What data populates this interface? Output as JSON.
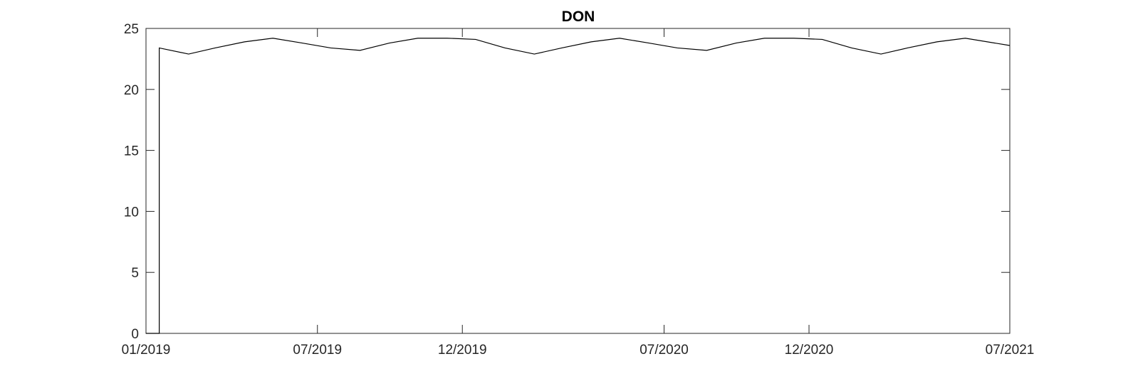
{
  "chart_data": {
    "type": "line",
    "title": "DON",
    "xlabel": "",
    "ylabel": "",
    "x_axis": {
      "type": "date",
      "range": [
        "2019-01-01",
        "2021-07-01"
      ],
      "tick_values": [
        "2019-01-01",
        "2019-07-01",
        "2019-12-01",
        "2020-07-01",
        "2020-12-01",
        "2021-07-01"
      ],
      "tick_labels": [
        "01/2019",
        "07/2019",
        "12/2019",
        "07/2020",
        "12/2020",
        "07/2021"
      ]
    },
    "y_axis": {
      "range": [
        0,
        25
      ],
      "tick_values": [
        0,
        5,
        10,
        15,
        20,
        25
      ],
      "tick_labels": [
        "0",
        "5",
        "10",
        "15",
        "20",
        "25"
      ]
    },
    "grid": false,
    "legend": "none",
    "series": [
      {
        "color": "#000000",
        "points": [
          {
            "x": "2019-01-01",
            "y": 0
          },
          {
            "x": "2019-01-15",
            "y": 0
          },
          {
            "x": "2019-01-15",
            "y": 23.4
          },
          {
            "x": "2019-02-15",
            "y": 22.9
          },
          {
            "x": "2019-03-15",
            "y": 23.4
          },
          {
            "x": "2019-04-15",
            "y": 23.9
          },
          {
            "x": "2019-05-15",
            "y": 24.2
          },
          {
            "x": "2019-06-15",
            "y": 23.8
          },
          {
            "x": "2019-07-15",
            "y": 23.4
          },
          {
            "x": "2019-08-15",
            "y": 23.2
          },
          {
            "x": "2019-09-15",
            "y": 23.8
          },
          {
            "x": "2019-10-15",
            "y": 24.2
          },
          {
            "x": "2019-11-15",
            "y": 24.2
          },
          {
            "x": "2019-12-15",
            "y": 24.1
          },
          {
            "x": "2020-01-15",
            "y": 23.4
          },
          {
            "x": "2020-02-15",
            "y": 22.9
          },
          {
            "x": "2020-03-15",
            "y": 23.4
          },
          {
            "x": "2020-04-15",
            "y": 23.9
          },
          {
            "x": "2020-05-15",
            "y": 24.2
          },
          {
            "x": "2020-06-15",
            "y": 23.8
          },
          {
            "x": "2020-07-15",
            "y": 23.4
          },
          {
            "x": "2020-08-15",
            "y": 23.2
          },
          {
            "x": "2020-09-15",
            "y": 23.8
          },
          {
            "x": "2020-10-15",
            "y": 24.2
          },
          {
            "x": "2020-11-15",
            "y": 24.2
          },
          {
            "x": "2020-12-15",
            "y": 24.1
          },
          {
            "x": "2021-01-15",
            "y": 23.4
          },
          {
            "x": "2021-02-15",
            "y": 22.9
          },
          {
            "x": "2021-03-15",
            "y": 23.4
          },
          {
            "x": "2021-04-15",
            "y": 23.9
          },
          {
            "x": "2021-05-15",
            "y": 24.2
          },
          {
            "x": "2021-07-01",
            "y": 23.6
          }
        ]
      }
    ]
  }
}
